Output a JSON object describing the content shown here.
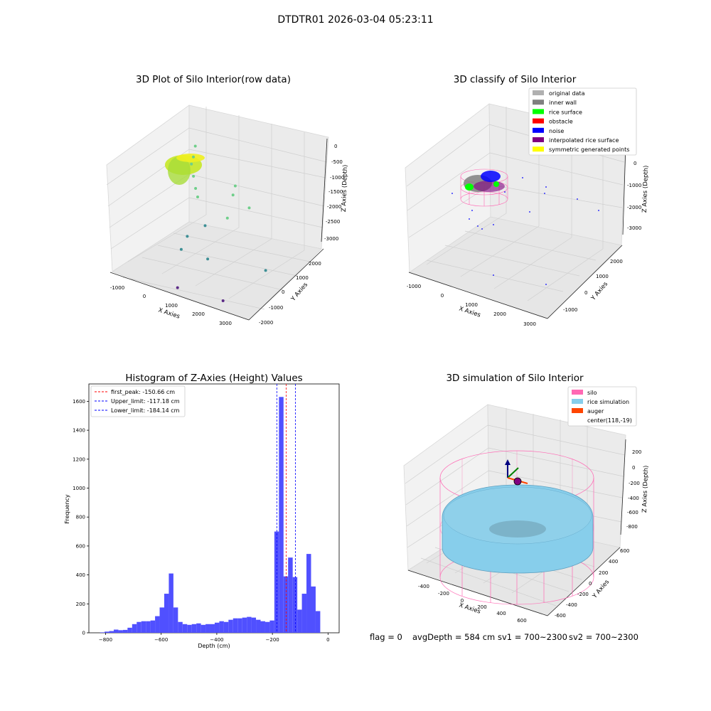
{
  "figure": {
    "title": "DTDTR01 2026-03-04 05:23:11",
    "footer": {
      "flag": "flag = 0",
      "avg_depth": "avgDepth = 584 cm",
      "sv1": "sv1 = 700~2300",
      "sv2": "sv2 = 700~2300"
    }
  },
  "colors": {
    "histogram_bar": "#5050ff",
    "first_peak_line": "#ff0000",
    "limit_line": "#0000ff",
    "original_data": "#b0b0b0",
    "inner_wall": "#808080",
    "rice_surface": "#00ff00",
    "obstacle": "#ff0000",
    "noise": "#0000ff",
    "interpolated_rice_surface": "#800080",
    "symmetric_generated_points": "#ffff00",
    "silo": "#ff69b4",
    "rice_simulation": "#87ceeb",
    "auger": "#ff4500"
  },
  "chart_data": [
    {
      "type": "scatter",
      "title": "3D Plot of Silo Interior(row data)",
      "xlabel": "X Axies",
      "ylabel": "Y Axies",
      "zlabel": "Z Axies (Depth)",
      "x_ticks": [
        "-1000",
        "0",
        "1000",
        "2000",
        "3000"
      ],
      "y_ticks": [
        "-2000",
        "-1000",
        "0",
        "1000",
        "2000"
      ],
      "z_ticks": [
        "0",
        "-500",
        "-1000",
        "-1500",
        "-2000",
        "-2500",
        "-3000"
      ],
      "x_range": [
        -1500,
        3500
      ],
      "y_range": [
        -2000,
        2500
      ],
      "z_range": [
        -3000,
        0
      ],
      "points": [
        {
          "x": -200,
          "y": 800,
          "z": -400
        },
        {
          "x": -150,
          "y": 600,
          "z": -600
        },
        {
          "x": -100,
          "y": 400,
          "z": -700
        },
        {
          "x": 100,
          "y": 200,
          "z": -900
        },
        {
          "x": 300,
          "y": 0,
          "z": -1100
        },
        {
          "x": 500,
          "y": -200,
          "z": -1200
        },
        {
          "x": 1400,
          "y": 600,
          "z": -1000
        },
        {
          "x": 1500,
          "y": 300,
          "z": -1100
        },
        {
          "x": 2100,
          "y": 300,
          "z": -1300
        },
        {
          "x": 1600,
          "y": -200,
          "z": -1500
        },
        {
          "x": 900,
          "y": -400,
          "z": -1800
        },
        {
          "x": 300,
          "y": -500,
          "z": -2200
        },
        {
          "x": 200,
          "y": -700,
          "z": -2500
        },
        {
          "x": 1300,
          "y": -900,
          "z": -2400
        },
        {
          "x": 3200,
          "y": -500,
          "z": -2400
        },
        {
          "x": 800,
          "y": -1900,
          "z": -2900
        },
        {
          "x": 2300,
          "y": -1600,
          "z": -3000
        }
      ]
    },
    {
      "type": "scatter",
      "title": "3D classify of Silo Interior",
      "xlabel": "X Axies",
      "ylabel": "Y Axies",
      "zlabel": "Z Axies (Depth)",
      "x_ticks": [
        "-1000",
        "0",
        "1000",
        "2000",
        "3000"
      ],
      "y_ticks": [
        "-1000",
        "0",
        "1000",
        "2000"
      ],
      "z_ticks": [
        "0",
        "-1000",
        "-2000",
        "-3000"
      ],
      "legend": [
        "original data",
        "inner wall",
        "rice surface",
        "obstacle",
        "noise",
        "interpolated rice surface",
        "symmetric generated points"
      ],
      "legend_position": "top-right"
    },
    {
      "type": "bar",
      "title": "Histogram of Z-Axies (Height) Values",
      "xlabel": "Depth (cm)",
      "ylabel": "Frequency",
      "xlim": [
        -860,
        40
      ],
      "ylim": [
        0,
        1720
      ],
      "x_ticks": [
        -800,
        -600,
        -400,
        -200,
        0
      ],
      "y_ticks": [
        0,
        200,
        400,
        600,
        800,
        1000,
        1200,
        1400,
        1600
      ],
      "bin_start": -820,
      "bin_width": 16.5,
      "values": [
        3,
        8,
        12,
        22,
        18,
        20,
        35,
        60,
        75,
        80,
        80,
        85,
        115,
        175,
        270,
        410,
        175,
        75,
        60,
        55,
        60,
        65,
        55,
        60,
        60,
        70,
        80,
        75,
        90,
        100,
        100,
        105,
        110,
        105,
        90,
        80,
        75,
        85,
        700,
        1630,
        390,
        520,
        385,
        160,
        270,
        545,
        320,
        150
      ],
      "lines": [
        {
          "label": "first_peak: -150.66 cm",
          "x": -150.66,
          "color_key": "first_peak_line"
        },
        {
          "label": "Upper_limit: -117.18 cm",
          "x": -117.18,
          "color_key": "limit_line"
        },
        {
          "label": "Lower_limit: -184.14 cm",
          "x": -184.14,
          "color_key": "limit_line"
        }
      ],
      "legend_position": "top-left"
    },
    {
      "type": "surface",
      "title": "3D simulation of Silo Interior",
      "xlabel": "X Axies",
      "ylabel": "Y Axies",
      "zlabel": "Z Axies (Depth)",
      "x_ticks": [
        "-400",
        "-200",
        "0",
        "200",
        "400",
        "600"
      ],
      "y_ticks": [
        "-600",
        "-400",
        "-200",
        "0",
        "200",
        "400",
        "600"
      ],
      "z_ticks": [
        "200",
        "0",
        "-200",
        "-400",
        "-600",
        "-800"
      ],
      "legend": [
        "silo",
        "rice simulation",
        "auger",
        "center(118,-19)"
      ],
      "legend_position": "top-right"
    }
  ]
}
